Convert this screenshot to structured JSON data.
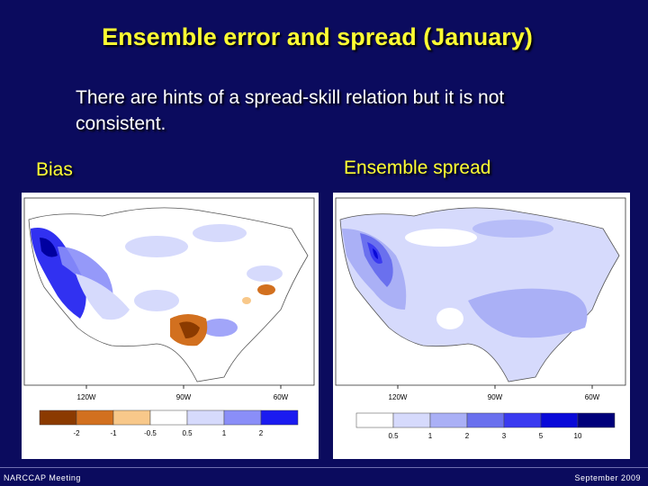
{
  "slide": {
    "title": "Ensemble error and spread (January)",
    "subtitle": "There are hints of a spread-skill relation but it is not consistent.",
    "footer_left": "NARCCAP Meeting",
    "footer_right": "September 2009"
  },
  "colors": {
    "background": "#0b0b5e",
    "title": "#ffff33"
  },
  "panels": [
    {
      "label": "Bias",
      "longitudes": [
        "120W",
        "90W",
        "60W"
      ],
      "colorbar": {
        "colors": [
          "#8b3a00",
          "#d2701f",
          "#f8c88a",
          "#ffffff",
          "#d6dafc",
          "#8a8ef8",
          "#1b1bf0"
        ],
        "labels": [
          "-2",
          "-1",
          "-0.5",
          "0.5",
          "1",
          "2"
        ]
      }
    },
    {
      "label": "Ensemble spread",
      "longitudes": [
        "120W",
        "90W",
        "60W"
      ],
      "colorbar": {
        "colors": [
          "#ffffff",
          "#d6dafc",
          "#aab0f6",
          "#6a70ee",
          "#3a3af0",
          "#0a0ad8",
          "#00007a"
        ],
        "labels": [
          "0.5",
          "1",
          "2",
          "3",
          "5",
          "10"
        ]
      }
    }
  ]
}
